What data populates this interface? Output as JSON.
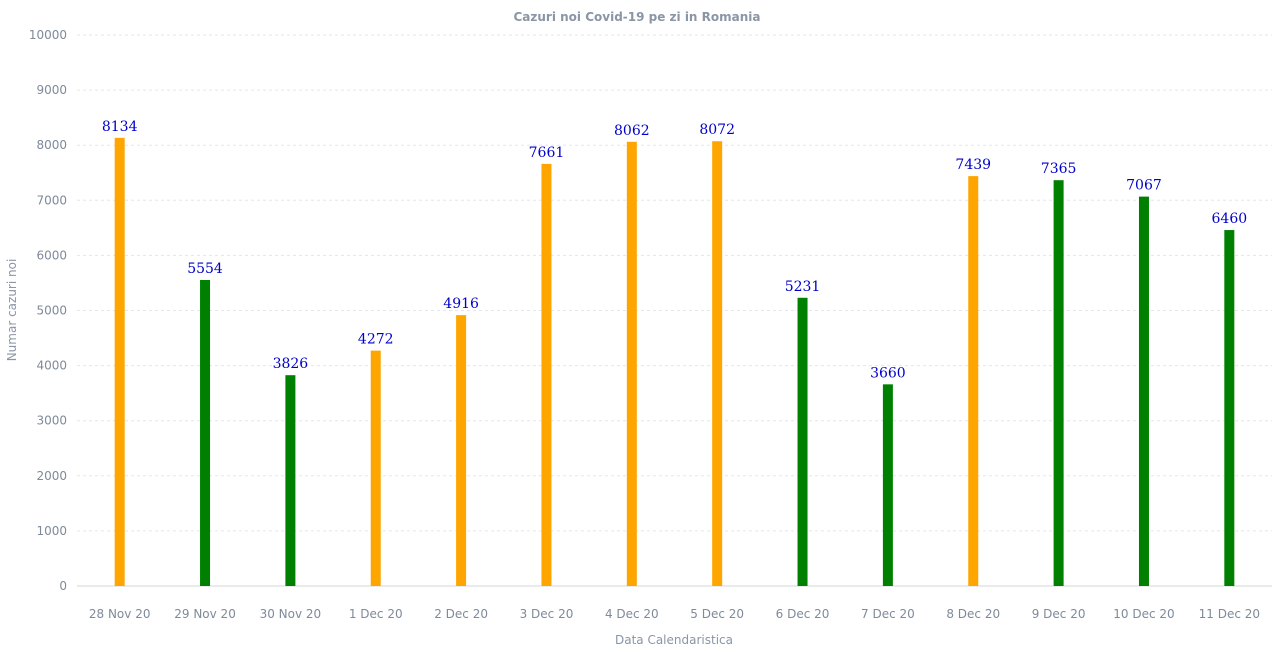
{
  "chart_data": {
    "type": "bar",
    "title": "Cazuri noi Covid-19 pe zi in Romania",
    "xlabel": "Data Calendaristica",
    "ylabel": "Numar cazuri noi",
    "ylim": [
      0,
      10000
    ],
    "yticks": [
      0,
      1000,
      2000,
      3000,
      4000,
      5000,
      6000,
      7000,
      8000,
      9000,
      10000
    ],
    "grid": true,
    "categories": [
      "28 Nov 20",
      "29 Nov 20",
      "30 Nov 20",
      "1 Dec 20",
      "2 Dec 20",
      "3 Dec 20",
      "4 Dec 20",
      "5 Dec 20",
      "6 Dec 20",
      "7 Dec 20",
      "8 Dec 20",
      "9 Dec 20",
      "10 Dec 20",
      "11 Dec 20"
    ],
    "values": [
      8134,
      5554,
      3826,
      4272,
      4916,
      7661,
      8062,
      8072,
      5231,
      3660,
      7439,
      7365,
      7067,
      6460
    ],
    "bar_colors": [
      "#ffa500",
      "#008000",
      "#008000",
      "#ffa500",
      "#ffa500",
      "#ffa500",
      "#ffa500",
      "#ffa500",
      "#008000",
      "#008000",
      "#ffa500",
      "#008000",
      "#008000",
      "#008000"
    ],
    "data_labels": [
      "8134",
      "5554",
      "3826",
      "4272",
      "4916",
      "7661",
      "8062",
      "8072",
      "5231",
      "3660",
      "7439",
      "7365",
      "7067",
      "6460"
    ]
  }
}
